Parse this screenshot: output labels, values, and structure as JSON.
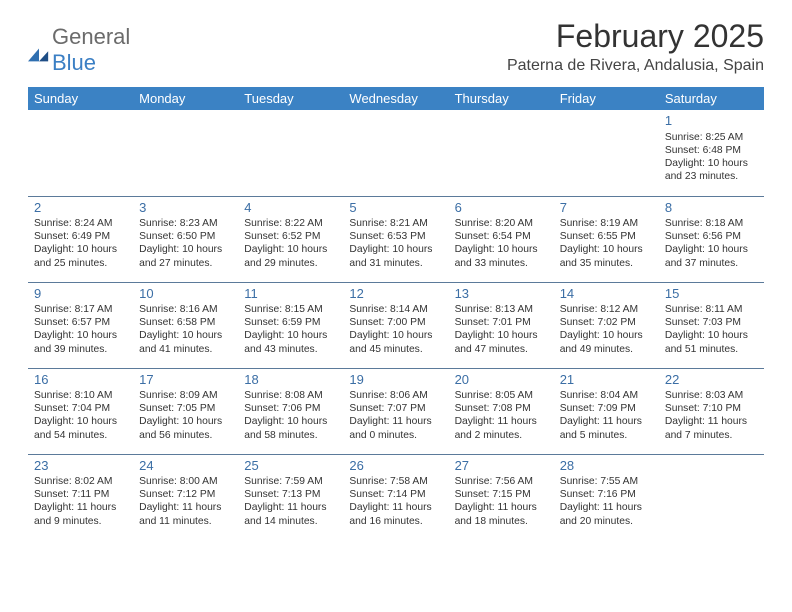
{
  "brand": {
    "general": "General",
    "blue": "Blue"
  },
  "title": "February 2025",
  "location": "Paterna de Rivera, Andalusia, Spain",
  "colors": {
    "header_bg": "#3b82c4",
    "header_text": "#ffffff",
    "daynum": "#3b6ea5",
    "divider": "#5b7a9a",
    "body_text": "#333333",
    "logo_gray": "#6b6b6b",
    "logo_blue": "#3b7fc4"
  },
  "daysOfWeek": [
    "Sunday",
    "Monday",
    "Tuesday",
    "Wednesday",
    "Thursday",
    "Friday",
    "Saturday"
  ],
  "weeks": [
    [
      null,
      null,
      null,
      null,
      null,
      null,
      {
        "n": "1",
        "sunrise": "Sunrise: 8:25 AM",
        "sunset": "Sunset: 6:48 PM",
        "daylight": "Daylight: 10 hours and 23 minutes."
      }
    ],
    [
      {
        "n": "2",
        "sunrise": "Sunrise: 8:24 AM",
        "sunset": "Sunset: 6:49 PM",
        "daylight": "Daylight: 10 hours and 25 minutes."
      },
      {
        "n": "3",
        "sunrise": "Sunrise: 8:23 AM",
        "sunset": "Sunset: 6:50 PM",
        "daylight": "Daylight: 10 hours and 27 minutes."
      },
      {
        "n": "4",
        "sunrise": "Sunrise: 8:22 AM",
        "sunset": "Sunset: 6:52 PM",
        "daylight": "Daylight: 10 hours and 29 minutes."
      },
      {
        "n": "5",
        "sunrise": "Sunrise: 8:21 AM",
        "sunset": "Sunset: 6:53 PM",
        "daylight": "Daylight: 10 hours and 31 minutes."
      },
      {
        "n": "6",
        "sunrise": "Sunrise: 8:20 AM",
        "sunset": "Sunset: 6:54 PM",
        "daylight": "Daylight: 10 hours and 33 minutes."
      },
      {
        "n": "7",
        "sunrise": "Sunrise: 8:19 AM",
        "sunset": "Sunset: 6:55 PM",
        "daylight": "Daylight: 10 hours and 35 minutes."
      },
      {
        "n": "8",
        "sunrise": "Sunrise: 8:18 AM",
        "sunset": "Sunset: 6:56 PM",
        "daylight": "Daylight: 10 hours and 37 minutes."
      }
    ],
    [
      {
        "n": "9",
        "sunrise": "Sunrise: 8:17 AM",
        "sunset": "Sunset: 6:57 PM",
        "daylight": "Daylight: 10 hours and 39 minutes."
      },
      {
        "n": "10",
        "sunrise": "Sunrise: 8:16 AM",
        "sunset": "Sunset: 6:58 PM",
        "daylight": "Daylight: 10 hours and 41 minutes."
      },
      {
        "n": "11",
        "sunrise": "Sunrise: 8:15 AM",
        "sunset": "Sunset: 6:59 PM",
        "daylight": "Daylight: 10 hours and 43 minutes."
      },
      {
        "n": "12",
        "sunrise": "Sunrise: 8:14 AM",
        "sunset": "Sunset: 7:00 PM",
        "daylight": "Daylight: 10 hours and 45 minutes."
      },
      {
        "n": "13",
        "sunrise": "Sunrise: 8:13 AM",
        "sunset": "Sunset: 7:01 PM",
        "daylight": "Daylight: 10 hours and 47 minutes."
      },
      {
        "n": "14",
        "sunrise": "Sunrise: 8:12 AM",
        "sunset": "Sunset: 7:02 PM",
        "daylight": "Daylight: 10 hours and 49 minutes."
      },
      {
        "n": "15",
        "sunrise": "Sunrise: 8:11 AM",
        "sunset": "Sunset: 7:03 PM",
        "daylight": "Daylight: 10 hours and 51 minutes."
      }
    ],
    [
      {
        "n": "16",
        "sunrise": "Sunrise: 8:10 AM",
        "sunset": "Sunset: 7:04 PM",
        "daylight": "Daylight: 10 hours and 54 minutes."
      },
      {
        "n": "17",
        "sunrise": "Sunrise: 8:09 AM",
        "sunset": "Sunset: 7:05 PM",
        "daylight": "Daylight: 10 hours and 56 minutes."
      },
      {
        "n": "18",
        "sunrise": "Sunrise: 8:08 AM",
        "sunset": "Sunset: 7:06 PM",
        "daylight": "Daylight: 10 hours and 58 minutes."
      },
      {
        "n": "19",
        "sunrise": "Sunrise: 8:06 AM",
        "sunset": "Sunset: 7:07 PM",
        "daylight": "Daylight: 11 hours and 0 minutes."
      },
      {
        "n": "20",
        "sunrise": "Sunrise: 8:05 AM",
        "sunset": "Sunset: 7:08 PM",
        "daylight": "Daylight: 11 hours and 2 minutes."
      },
      {
        "n": "21",
        "sunrise": "Sunrise: 8:04 AM",
        "sunset": "Sunset: 7:09 PM",
        "daylight": "Daylight: 11 hours and 5 minutes."
      },
      {
        "n": "22",
        "sunrise": "Sunrise: 8:03 AM",
        "sunset": "Sunset: 7:10 PM",
        "daylight": "Daylight: 11 hours and 7 minutes."
      }
    ],
    [
      {
        "n": "23",
        "sunrise": "Sunrise: 8:02 AM",
        "sunset": "Sunset: 7:11 PM",
        "daylight": "Daylight: 11 hours and 9 minutes."
      },
      {
        "n": "24",
        "sunrise": "Sunrise: 8:00 AM",
        "sunset": "Sunset: 7:12 PM",
        "daylight": "Daylight: 11 hours and 11 minutes."
      },
      {
        "n": "25",
        "sunrise": "Sunrise: 7:59 AM",
        "sunset": "Sunset: 7:13 PM",
        "daylight": "Daylight: 11 hours and 14 minutes."
      },
      {
        "n": "26",
        "sunrise": "Sunrise: 7:58 AM",
        "sunset": "Sunset: 7:14 PM",
        "daylight": "Daylight: 11 hours and 16 minutes."
      },
      {
        "n": "27",
        "sunrise": "Sunrise: 7:56 AM",
        "sunset": "Sunset: 7:15 PM",
        "daylight": "Daylight: 11 hours and 18 minutes."
      },
      {
        "n": "28",
        "sunrise": "Sunrise: 7:55 AM",
        "sunset": "Sunset: 7:16 PM",
        "daylight": "Daylight: 11 hours and 20 minutes."
      },
      null
    ]
  ]
}
